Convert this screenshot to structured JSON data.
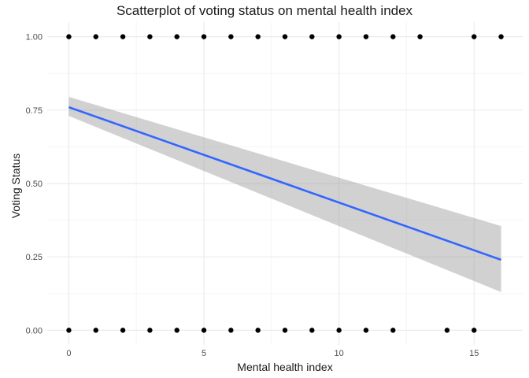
{
  "chart_data": {
    "type": "scatter",
    "title": "Scatterplot of voting status on mental health index",
    "xlabel": "Mental health index",
    "ylabel": "Voting Status",
    "xlim": [
      -0.8,
      16.8
    ],
    "ylim": [
      -0.05,
      1.05
    ],
    "x_ticks": [
      0,
      5,
      10,
      15
    ],
    "x_tick_labels": [
      "0",
      "5",
      "10",
      "15"
    ],
    "y_ticks": [
      0,
      0.25,
      0.5,
      0.75,
      1
    ],
    "y_tick_labels": [
      "0.00",
      "0.25",
      "0.50",
      "0.75",
      "1.00"
    ],
    "grid": true,
    "points": {
      "y1_x": [
        0,
        1,
        2,
        3,
        4,
        5,
        6,
        7,
        8,
        9,
        10,
        11,
        12,
        13,
        15,
        16
      ],
      "y0_x": [
        0,
        1,
        2,
        3,
        4,
        5,
        6,
        7,
        8,
        9,
        10,
        11,
        12,
        14,
        15
      ]
    },
    "fit_line": {
      "x": [
        0,
        16
      ],
      "y": [
        0.76,
        0.24
      ]
    },
    "confidence_band": {
      "x": [
        0,
        16
      ],
      "lower": [
        0.73,
        0.13
      ],
      "upper": [
        0.795,
        0.355
      ]
    },
    "colors": {
      "point": "#000000",
      "line": "#3366FF",
      "band": "#999999",
      "grid_major": "#ebebeb",
      "grid_minor": "#f5f5f5"
    }
  }
}
